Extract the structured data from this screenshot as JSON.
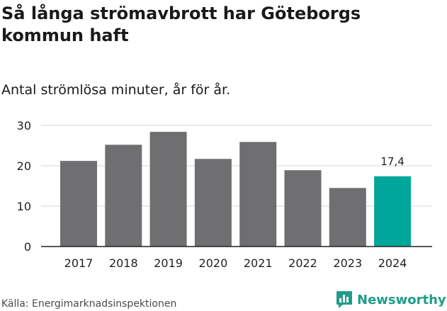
{
  "header": {
    "title": "Så långa strömavbrott har Göteborgs kommun haft",
    "subtitle": "Antal strömlösa minuter, år för år."
  },
  "footer": {
    "source": "Källa: Energimarknadsinspektionen",
    "brand": "Newsworthy"
  },
  "colors": {
    "bar": "#6f6e70",
    "highlight": "#00a69a",
    "grid": "#d4d4d4",
    "axis": "#222222",
    "brand": "#1f9c8a"
  },
  "icons": {
    "brand_logo": "bar-chart-speech-bubble-icon"
  },
  "chart_data": {
    "type": "bar",
    "title": "Så långa strömavbrott har Göteborgs kommun haft",
    "subtitle": "Antal strömlösa minuter, år för år.",
    "xlabel": "",
    "ylabel": "",
    "categories": [
      "2017",
      "2018",
      "2019",
      "2020",
      "2021",
      "2022",
      "2023",
      "2024"
    ],
    "values": [
      21.2,
      25.2,
      28.4,
      21.7,
      25.9,
      18.9,
      14.5,
      17.4
    ],
    "highlight_index": 7,
    "data_labels": [
      {
        "index": 7,
        "text": "17,4"
      }
    ],
    "ylim": [
      0,
      30
    ],
    "yticks": [
      0,
      10,
      20,
      30
    ],
    "grid": true,
    "legend": "none"
  }
}
